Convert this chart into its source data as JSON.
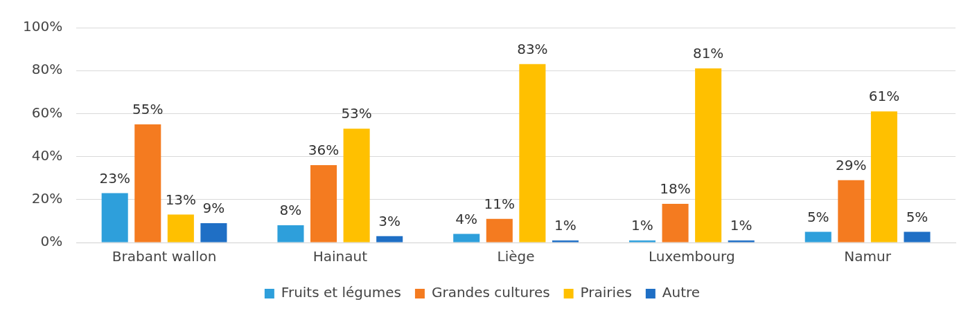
{
  "chart_data": {
    "type": "bar",
    "categories": [
      "Brabant wallon",
      "Hainaut",
      "Liège",
      "Luxembourg",
      "Namur"
    ],
    "series": [
      {
        "name": "Fruits et légumes",
        "color": "#2e9fdb",
        "values": [
          23,
          8,
          4,
          1,
          5
        ],
        "value_labels": [
          "23%",
          "8%",
          "4%",
          "1%",
          "5%"
        ]
      },
      {
        "name": "Grandes cultures",
        "color": "#f47b20",
        "values": [
          55,
          36,
          11,
          18,
          29
        ],
        "value_labels": [
          "55%",
          "36%",
          "11%",
          "18%",
          "29%"
        ]
      },
      {
        "name": "Prairies",
        "color": "#ffc000",
        "values": [
          13,
          53,
          83,
          81,
          61
        ],
        "value_labels": [
          "13%",
          "53%",
          "83%",
          "81%",
          "61%"
        ]
      },
      {
        "name": "Autre",
        "color": "#1f6fc5",
        "values": [
          9,
          3,
          1,
          1,
          5
        ],
        "value_labels": [
          "9%",
          "3%",
          "1%",
          "1%",
          "5%"
        ]
      }
    ],
    "ylim": [
      0,
      100
    ],
    "yticks": [
      {
        "value": 0,
        "label": "0%"
      },
      {
        "value": 20,
        "label": "20%"
      },
      {
        "value": 40,
        "label": "40%"
      },
      {
        "value": 60,
        "label": "60%"
      },
      {
        "value": 80,
        "label": "80%"
      },
      {
        "value": 100,
        "label": "100%"
      }
    ],
    "grid": "y",
    "legend": "bottom"
  }
}
